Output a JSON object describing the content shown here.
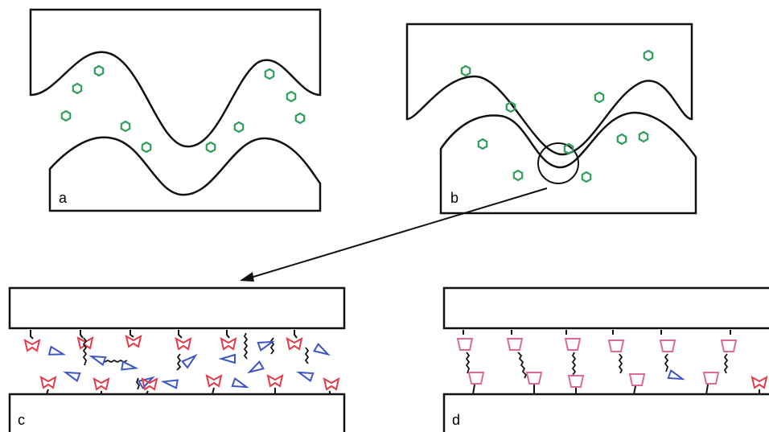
{
  "panels": {
    "a": {
      "label": "a"
    },
    "b": {
      "label": "b"
    },
    "c": {
      "label": "c"
    },
    "d": {
      "label": "d"
    }
  },
  "colors": {
    "outline": "#111111",
    "particle": "#2e9e5a",
    "ligand_red": "#e23b48",
    "ligand_blue": "#3b55c4",
    "ligand_pink": "#d96a9a",
    "tether": "#111111"
  }
}
